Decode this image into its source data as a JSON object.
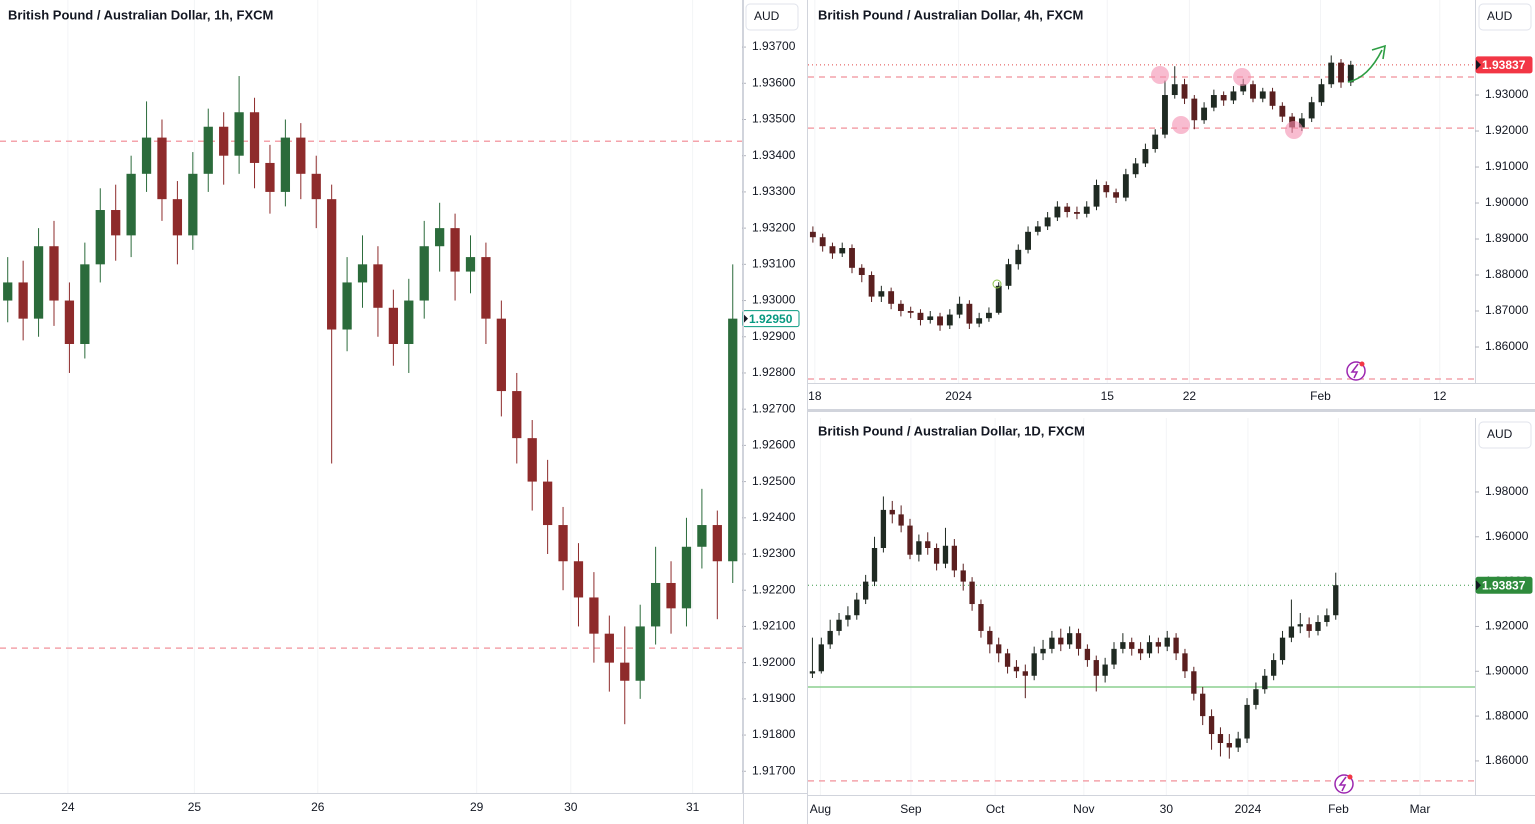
{
  "chart_data": [
    {
      "type": "candlestick",
      "title": "British Pound / Australian Dollar, 1h, FXCM",
      "currency": "AUD",
      "up_color": "#2b6b3b",
      "down_color": "#8e2b2b",
      "xlim": [
        -0.5,
        47.6
      ],
      "xticks": [
        {
          "value": 3.9,
          "label": "24"
        },
        {
          "value": 12.1,
          "label": "25"
        },
        {
          "value": 20.1,
          "label": "26"
        },
        {
          "value": 30.4,
          "label": "29"
        },
        {
          "value": 36.5,
          "label": "30"
        },
        {
          "value": 44.4,
          "label": "31"
        }
      ],
      "ylim": [
        1.9164,
        1.9383
      ],
      "yticks": [
        {
          "value": 1.917,
          "label": "1.91700"
        },
        {
          "value": 1.918,
          "label": "1.91800"
        },
        {
          "value": 1.919,
          "label": "1.91900"
        },
        {
          "value": 1.92,
          "label": "1.92000"
        },
        {
          "value": 1.921,
          "label": "1.92100"
        },
        {
          "value": 1.922,
          "label": "1.92200"
        },
        {
          "value": 1.923,
          "label": "1.92300"
        },
        {
          "value": 1.924,
          "label": "1.92400"
        },
        {
          "value": 1.925,
          "label": "1.92500"
        },
        {
          "value": 1.926,
          "label": "1.92600"
        },
        {
          "value": 1.927,
          "label": "1.92700"
        },
        {
          "value": 1.928,
          "label": "1.92800"
        },
        {
          "value": 1.929,
          "label": "1.92900"
        },
        {
          "value": 1.93,
          "label": "1.93000"
        },
        {
          "value": 1.931,
          "label": "1.93100"
        },
        {
          "value": 1.932,
          "label": "1.93200"
        },
        {
          "value": 1.933,
          "label": "1.93300"
        },
        {
          "value": 1.934,
          "label": "1.93400"
        },
        {
          "value": 1.935,
          "label": "1.93500"
        },
        {
          "value": 1.936,
          "label": "1.93600"
        },
        {
          "value": 1.937,
          "label": "1.93700"
        }
      ],
      "hlines": [
        {
          "value": 1.9344,
          "color": "#f4a3ab",
          "style": "dashed"
        },
        {
          "value": 1.9204,
          "color": "#f4a3ab",
          "style": "dashed"
        }
      ],
      "last_price": {
        "value": 1.9295,
        "label": "1.92950",
        "color": "#089981",
        "style": "outline"
      },
      "open": [
        1.93,
        1.9305,
        1.9295,
        1.9315,
        1.93,
        1.9288,
        1.931,
        1.9325,
        1.9318,
        1.9335,
        1.9345,
        1.9328,
        1.9318,
        1.9335,
        1.9348,
        1.934,
        1.9352,
        1.9338,
        1.933,
        1.9345,
        1.9335,
        1.9328,
        1.9292,
        1.9305,
        1.931,
        1.9298,
        1.9288,
        1.93,
        1.9315,
        1.932,
        1.9308,
        1.9312,
        1.9295,
        1.9275,
        1.9262,
        1.925,
        1.9238,
        1.9228,
        1.9218,
        1.9208,
        1.92,
        1.9195,
        1.921,
        1.9222,
        1.9215,
        1.9232,
        1.9238,
        1.9228
      ],
      "high": [
        1.9312,
        1.9311,
        1.932,
        1.9322,
        1.9305,
        1.9316,
        1.9331,
        1.9332,
        1.934,
        1.9355,
        1.935,
        1.9333,
        1.9341,
        1.9353,
        1.9352,
        1.9362,
        1.9356,
        1.9343,
        1.935,
        1.9349,
        1.934,
        1.9332,
        1.9312,
        1.9318,
        1.9315,
        1.9303,
        1.9306,
        1.9322,
        1.9327,
        1.9324,
        1.9318,
        1.9316,
        1.93,
        1.928,
        1.9267,
        1.9256,
        1.9243,
        1.9233,
        1.9225,
        1.9213,
        1.921,
        1.9216,
        1.9232,
        1.9228,
        1.924,
        1.9248,
        1.9242,
        1.931
      ],
      "low": [
        1.9294,
        1.9289,
        1.929,
        1.9293,
        1.928,
        1.9284,
        1.9305,
        1.9311,
        1.9312,
        1.933,
        1.9322,
        1.931,
        1.9314,
        1.933,
        1.9332,
        1.9335,
        1.9331,
        1.9324,
        1.9326,
        1.9328,
        1.932,
        1.9255,
        1.9286,
        1.9298,
        1.929,
        1.9282,
        1.928,
        1.9295,
        1.9308,
        1.93,
        1.9302,
        1.9288,
        1.9268,
        1.9255,
        1.9242,
        1.923,
        1.922,
        1.921,
        1.92,
        1.9192,
        1.9183,
        1.919,
        1.9205,
        1.9208,
        1.921,
        1.9226,
        1.9212,
        1.9222
      ],
      "close": [
        1.9305,
        1.9295,
        1.9315,
        1.93,
        1.9288,
        1.931,
        1.9325,
        1.9318,
        1.9335,
        1.9345,
        1.9328,
        1.9318,
        1.9335,
        1.9348,
        1.934,
        1.9352,
        1.9338,
        1.933,
        1.9345,
        1.9335,
        1.9328,
        1.9292,
        1.9305,
        1.931,
        1.9298,
        1.9288,
        1.93,
        1.9315,
        1.932,
        1.9308,
        1.9312,
        1.9295,
        1.9275,
        1.9262,
        1.925,
        1.9238,
        1.9228,
        1.9218,
        1.9208,
        1.92,
        1.9195,
        1.921,
        1.9222,
        1.9215,
        1.9232,
        1.9238,
        1.9228,
        1.9295
      ]
    },
    {
      "type": "candlestick",
      "title": "British Pound / Australian Dollar, 4h, FXCM",
      "currency": "AUD",
      "up_color": "#1f2a22",
      "down_color": "#5a1f1f",
      "xlim": [
        -0.5,
        67.7
      ],
      "xticks": [
        {
          "value": 0.2,
          "label": "18"
        },
        {
          "value": 14.9,
          "label": "2024"
        },
        {
          "value": 30.1,
          "label": "15"
        },
        {
          "value": 38.5,
          "label": "22"
        },
        {
          "value": 51.9,
          "label": "Feb"
        },
        {
          "value": 64.1,
          "label": "12"
        }
      ],
      "ylim": [
        1.85,
        1.9564
      ],
      "yticks": [
        {
          "value": 1.86,
          "label": "1.86000"
        },
        {
          "value": 1.87,
          "label": "1.87000"
        },
        {
          "value": 1.88,
          "label": "1.88000"
        },
        {
          "value": 1.89,
          "label": "1.89000"
        },
        {
          "value": 1.9,
          "label": "1.90000"
        },
        {
          "value": 1.91,
          "label": "1.91000"
        },
        {
          "value": 1.92,
          "label": "1.92000"
        },
        {
          "value": 1.93,
          "label": "1.93000"
        }
      ],
      "hlines": [
        {
          "value": 1.935,
          "color": "#f4a3ab",
          "style": "dashed"
        },
        {
          "value": 1.9208,
          "color": "#f4a3ab",
          "style": "dashed"
        },
        {
          "value": 1.8511,
          "color": "#f4a3ab",
          "style": "dashed"
        },
        {
          "value": 1.93837,
          "color": "#e04848",
          "style": "dotted"
        }
      ],
      "last_price": {
        "value": 1.93837,
        "label": "1.93837",
        "color": "#f23645",
        "style": "fill"
      },
      "open": [
        1.892,
        1.8905,
        1.888,
        1.886,
        1.8875,
        1.882,
        1.88,
        1.874,
        1.8755,
        1.872,
        1.87,
        1.8695,
        1.8675,
        1.8685,
        1.866,
        1.869,
        1.872,
        1.8665,
        1.868,
        1.8695,
        1.877,
        1.883,
        1.887,
        1.892,
        1.8935,
        1.896,
        1.899,
        1.8975,
        1.897,
        1.899,
        1.905,
        1.903,
        1.9015,
        1.908,
        1.911,
        1.915,
        1.919,
        1.93,
        1.933,
        1.929,
        1.923,
        1.9265,
        1.93,
        1.9285,
        1.931,
        1.933,
        1.929,
        1.931,
        1.927,
        1.924,
        1.921,
        1.9235,
        1.928,
        1.933,
        1.939,
        1.9335
      ],
      "high": [
        1.8935,
        1.8915,
        1.889,
        1.889,
        1.8885,
        1.883,
        1.881,
        1.877,
        1.8765,
        1.873,
        1.8712,
        1.8705,
        1.87,
        1.8695,
        1.8705,
        1.874,
        1.873,
        1.8695,
        1.871,
        1.878,
        1.8845,
        1.8885,
        1.8935,
        1.895,
        1.8975,
        1.9005,
        1.9,
        1.899,
        1.9005,
        1.9065,
        1.906,
        1.904,
        1.9095,
        1.9125,
        1.9165,
        1.9205,
        1.934,
        1.938,
        1.9345,
        1.93,
        1.928,
        1.9315,
        1.931,
        1.9325,
        1.9345,
        1.934,
        1.932,
        1.932,
        1.928,
        1.925,
        1.925,
        1.9295,
        1.9345,
        1.941,
        1.94,
        1.9395
      ],
      "low": [
        1.889,
        1.8865,
        1.8845,
        1.885,
        1.8805,
        1.878,
        1.8725,
        1.8725,
        1.8705,
        1.8685,
        1.868,
        1.866,
        1.8665,
        1.8645,
        1.865,
        1.868,
        1.865,
        1.8655,
        1.867,
        1.869,
        1.876,
        1.8815,
        1.886,
        1.891,
        1.8925,
        1.895,
        1.896,
        1.8955,
        1.896,
        1.898,
        1.9015,
        1.9,
        1.9005,
        1.907,
        1.91,
        1.914,
        1.918,
        1.929,
        1.9275,
        1.9205,
        1.922,
        1.9255,
        1.927,
        1.9275,
        1.93,
        1.928,
        1.928,
        1.926,
        1.9225,
        1.9195,
        1.92,
        1.9225,
        1.927,
        1.932,
        1.932,
        1.9325
      ],
      "close": [
        1.8905,
        1.888,
        1.886,
        1.8875,
        1.882,
        1.88,
        1.874,
        1.8755,
        1.872,
        1.87,
        1.8695,
        1.8675,
        1.8685,
        1.866,
        1.869,
        1.872,
        1.8665,
        1.868,
        1.8695,
        1.877,
        1.883,
        1.887,
        1.892,
        1.8935,
        1.896,
        1.899,
        1.8975,
        1.897,
        1.899,
        1.905,
        1.903,
        1.9015,
        1.908,
        1.911,
        1.915,
        1.919,
        1.93,
        1.933,
        1.929,
        1.923,
        1.9265,
        1.93,
        1.9285,
        1.931,
        1.933,
        1.929,
        1.931,
        1.927,
        1.924,
        1.921,
        1.9235,
        1.928,
        1.933,
        1.939,
        1.9335,
        1.9384
      ]
    },
    {
      "type": "candlestick",
      "title": "British Pound / Australian Dollar, 1D, FXCM",
      "currency": "AUD",
      "up_color": "#1f2a22",
      "down_color": "#5a1f1f",
      "xlim": [
        -0.5,
        74.7
      ],
      "xticks": [
        {
          "value": 0.9,
          "label": "Aug"
        },
        {
          "value": 11.1,
          "label": "Sep"
        },
        {
          "value": 20.6,
          "label": "Oct"
        },
        {
          "value": 30.6,
          "label": "Nov"
        },
        {
          "value": 39.9,
          "label": "30"
        },
        {
          "value": 49.1,
          "label": "2024"
        },
        {
          "value": 59.3,
          "label": "Feb"
        },
        {
          "value": 68.5,
          "label": "Mar"
        }
      ],
      "ylim": [
        1.8448,
        2.013
      ],
      "yticks": [
        {
          "value": 1.86,
          "label": "1.86000"
        },
        {
          "value": 1.88,
          "label": "1.88000"
        },
        {
          "value": 1.9,
          "label": "1.90000"
        },
        {
          "value": 1.92,
          "label": "1.92000"
        },
        {
          "value": 1.94,
          "label": "1.94000"
        },
        {
          "value": 1.96,
          "label": "1.96000"
        },
        {
          "value": 1.98,
          "label": "1.98000"
        }
      ],
      "hlines": [
        {
          "value": 1.893,
          "color": "#8bcf8f",
          "style": "solid"
        },
        {
          "value": 1.8511,
          "color": "#f4a3ab",
          "style": "dashed"
        },
        {
          "value": 1.93837,
          "color": "#3d9a4a",
          "style": "dotted"
        }
      ],
      "last_price": {
        "value": 1.93837,
        "label": "1.93837",
        "color": "#2e8b3c",
        "style": "fill"
      },
      "open": [
        1.899,
        1.9,
        1.912,
        1.918,
        1.923,
        1.925,
        1.932,
        1.94,
        1.955,
        1.972,
        1.97,
        1.965,
        1.952,
        1.958,
        1.955,
        1.948,
        1.956,
        1.945,
        1.94,
        1.93,
        1.918,
        1.912,
        1.908,
        1.902,
        1.9,
        1.898,
        1.908,
        1.91,
        1.915,
        1.912,
        1.917,
        1.91,
        1.905,
        1.898,
        1.903,
        1.91,
        1.913,
        1.91,
        1.908,
        1.913,
        1.911,
        1.915,
        1.908,
        1.9,
        1.89,
        1.88,
        1.872,
        1.868,
        1.866,
        1.87,
        1.885,
        1.892,
        1.898,
        1.905,
        1.915,
        1.92,
        1.921,
        1.918,
        1.922,
        1.925
      ],
      "high": [
        1.915,
        1.915,
        1.923,
        1.926,
        1.929,
        1.935,
        1.943,
        1.96,
        1.978,
        1.976,
        1.974,
        1.968,
        1.961,
        1.962,
        1.957,
        1.964,
        1.959,
        1.948,
        1.942,
        1.932,
        1.92,
        1.915,
        1.91,
        1.905,
        1.903,
        1.911,
        1.914,
        1.918,
        1.919,
        1.92,
        1.919,
        1.912,
        1.907,
        1.906,
        1.913,
        1.917,
        1.915,
        1.913,
        1.916,
        1.915,
        1.918,
        1.917,
        1.91,
        1.902,
        1.893,
        1.883,
        1.875,
        1.872,
        1.873,
        1.888,
        1.895,
        1.901,
        1.908,
        1.918,
        1.932,
        1.926,
        1.924,
        1.925,
        1.928,
        1.944
      ],
      "low": [
        1.897,
        1.899,
        1.91,
        1.916,
        1.92,
        1.923,
        1.93,
        1.938,
        1.953,
        1.966,
        1.962,
        1.95,
        1.949,
        1.952,
        1.945,
        1.946,
        1.942,
        1.936,
        1.927,
        1.915,
        1.908,
        1.904,
        1.899,
        1.897,
        1.888,
        1.896,
        1.905,
        1.908,
        1.909,
        1.91,
        1.907,
        1.902,
        1.891,
        1.895,
        1.901,
        1.908,
        1.907,
        1.905,
        1.906,
        1.908,
        1.909,
        1.905,
        1.897,
        1.887,
        1.876,
        1.865,
        1.862,
        1.861,
        1.864,
        1.868,
        1.883,
        1.89,
        1.896,
        1.903,
        1.913,
        1.917,
        1.915,
        1.916,
        1.92,
        1.923
      ],
      "close": [
        1.9,
        1.912,
        1.918,
        1.923,
        1.925,
        1.932,
        1.94,
        1.955,
        1.972,
        1.97,
        1.965,
        1.952,
        1.958,
        1.955,
        1.948,
        1.956,
        1.945,
        1.94,
        1.93,
        1.918,
        1.912,
        1.908,
        1.902,
        1.9,
        1.898,
        1.908,
        1.91,
        1.915,
        1.912,
        1.917,
        1.91,
        1.905,
        1.898,
        1.903,
        1.91,
        1.913,
        1.91,
        1.908,
        1.913,
        1.911,
        1.915,
        1.908,
        1.9,
        1.89,
        1.88,
        1.872,
        1.868,
        1.866,
        1.87,
        1.885,
        1.892,
        1.898,
        1.905,
        1.915,
        1.92,
        1.921,
        1.918,
        1.922,
        1.925,
        1.9384
      ]
    }
  ]
}
